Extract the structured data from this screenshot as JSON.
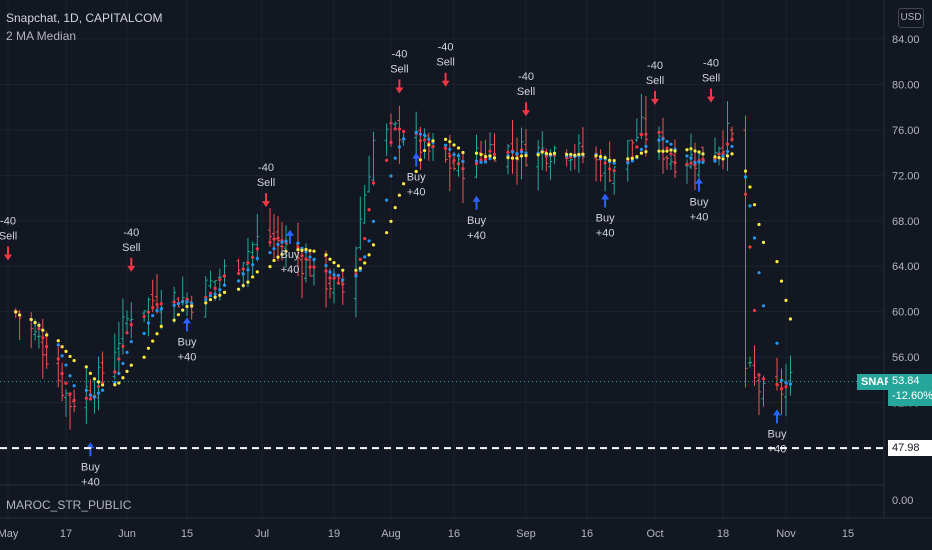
{
  "header": {
    "symbol_title": "Snapchat, 1D, CAPITALCOM",
    "indicator_title": "2 MA Median",
    "sub_indicator_title": "MAROC_STR_PUBLIC",
    "currency": "USD"
  },
  "price_scale": {
    "labels": [
      "84.00",
      "80.00",
      "76.00",
      "72.00",
      "68.00",
      "64.00",
      "60.00",
      "56.00",
      "52.00"
    ],
    "sub_label": "0.00"
  },
  "time_scale": {
    "labels": [
      "May",
      "17",
      "Jun",
      "15",
      "Jul",
      "19",
      "Aug",
      "16",
      "Sep",
      "16",
      "Oct",
      "18",
      "Nov",
      "15"
    ]
  },
  "last_price": {
    "symbol": "SNAP",
    "price": "53.84",
    "change": "-12.60%",
    "value": 53.84
  },
  "horizontal_level": {
    "label": "47.98",
    "value": 47.98
  },
  "colors": {
    "background": "#131722",
    "grid": "#1e222d",
    "up_bar": "#26a69a",
    "down_bar": "#ef5350",
    "sell_arrow": "#f23645",
    "buy_arrow": "#2962ff",
    "ma_fast": "#f23645",
    "ma_mid": "#2196f3",
    "ma_slow": "#ffeb3b"
  },
  "signals": [
    {
      "type": "sell",
      "line1": "-40",
      "line2": "Sell",
      "x_label": "May",
      "price": 64.5
    },
    {
      "type": "buy",
      "line1": "Buy",
      "line2": "+40",
      "x_label": "May 22",
      "price": 48.5
    },
    {
      "type": "sell",
      "line1": "-40",
      "line2": "Sell",
      "x_label": "Jun 1",
      "price": 63.5
    },
    {
      "type": "buy",
      "line1": "Buy",
      "line2": "+40",
      "x_label": "Jun 14",
      "price": 59.5
    },
    {
      "type": "sell",
      "line1": "-40",
      "line2": "Sell",
      "x_label": "Jul 1",
      "price": 69.2
    },
    {
      "type": "buy",
      "line1": "Buy",
      "line2": "+40",
      "x_label": "Jul 7",
      "price": 67.2
    },
    {
      "type": "sell",
      "line1": "-40",
      "line2": "Sell",
      "x_label": "Aug 2",
      "price": 79.2
    },
    {
      "type": "buy",
      "line1": "Buy",
      "line2": "+40",
      "x_label": "Aug 6",
      "price": 74.0
    },
    {
      "type": "sell",
      "line1": "-40",
      "line2": "Sell",
      "x_label": "Aug 13",
      "price": 79.8
    },
    {
      "type": "buy",
      "line1": "Buy",
      "line2": "+40",
      "x_label": "Aug 20",
      "price": 70.2
    },
    {
      "type": "sell",
      "line1": "-40",
      "line2": "Sell",
      "x_label": "Aug 31",
      "price": 77.2
    },
    {
      "type": "buy",
      "line1": "Buy",
      "line2": "+40",
      "x_label": "Sep 19",
      "price": 70.4
    },
    {
      "type": "sell",
      "line1": "-40",
      "line2": "Sell",
      "x_label": "Sep 30",
      "price": 78.2
    },
    {
      "type": "buy",
      "line1": "Buy",
      "line2": "+40",
      "x_label": "Oct 11",
      "price": 71.8
    },
    {
      "type": "sell",
      "line1": "-40",
      "line2": "Sell",
      "x_label": "Oct 14",
      "price": 78.4
    },
    {
      "type": "buy",
      "line1": "Buy",
      "line2": "+40",
      "x_label": "Oct 29",
      "price": 51.4
    }
  ],
  "chart_data": {
    "type": "candlestick",
    "title": "Snapchat, 1D, CAPITALCOM",
    "indicator": "2 MA Median",
    "ylim": [
      46,
      86
    ],
    "y_ticks": [
      84,
      80,
      76,
      72,
      68,
      64,
      60,
      56,
      52
    ],
    "x_ticks": [
      "May",
      "17",
      "Jun",
      "15",
      "Jul",
      "19",
      "Aug",
      "16",
      "Sep",
      "16",
      "Oct",
      "18",
      "Nov",
      "15"
    ],
    "price_path": [
      {
        "date": "May 3",
        "close": 60.0
      },
      {
        "date": "May 10",
        "close": 57.0
      },
      {
        "date": "May 17",
        "close": 52.0
      },
      {
        "date": "May 24",
        "close": 54.0
      },
      {
        "date": "Jun 1",
        "close": 60.0
      },
      {
        "date": "Jun 8",
        "close": 61.5
      },
      {
        "date": "Jun 15",
        "close": 61.0
      },
      {
        "date": "Jun 22",
        "close": 63.5
      },
      {
        "date": "Jul 1",
        "close": 67.0
      },
      {
        "date": "Jul 8",
        "close": 65.0
      },
      {
        "date": "Jul 15",
        "close": 63.0
      },
      {
        "date": "Jul 21",
        "close": 61.5
      },
      {
        "date": "Jul 27",
        "close": 75.0
      },
      {
        "date": "Aug 2",
        "close": 76.0
      },
      {
        "date": "Aug 9",
        "close": 74.0
      },
      {
        "date": "Aug 16",
        "close": 72.5
      },
      {
        "date": "Aug 23",
        "close": 74.5
      },
      {
        "date": "Sep 1",
        "close": 74.0
      },
      {
        "date": "Sep 10",
        "close": 74.5
      },
      {
        "date": "Sep 20",
        "close": 72.5
      },
      {
        "date": "Sep 27",
        "close": 76.0
      },
      {
        "date": "Oct 4",
        "close": 73.5
      },
      {
        "date": "Oct 11",
        "close": 73.5
      },
      {
        "date": "Oct 18",
        "close": 75.5
      },
      {
        "date": "Oct 21",
        "close": 74.5
      },
      {
        "date": "Oct 22",
        "close": 55.0
      },
      {
        "date": "Oct 27",
        "close": 52.0
      },
      {
        "date": "Nov 1",
        "close": 53.84
      }
    ],
    "last_close": 53.84,
    "change_percent": -12.6,
    "reference_level": 47.98
  }
}
